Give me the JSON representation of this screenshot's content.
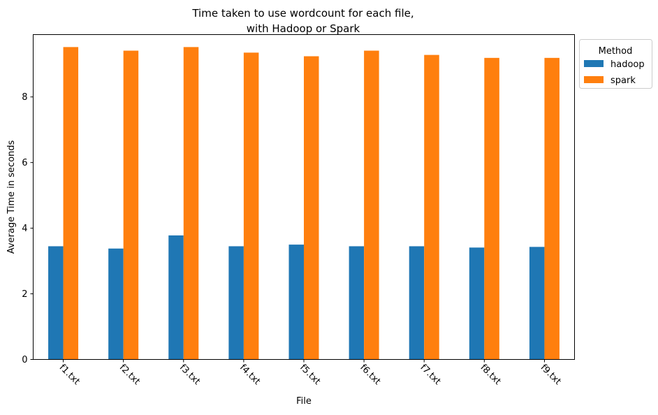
{
  "chart_data": {
    "type": "bar",
    "title_lines": [
      "Time taken to use wordcount for each file,",
      "with Hadoop or Spark"
    ],
    "xlabel": "File",
    "ylabel": "Average Time in seconds",
    "categories": [
      "f1.txt",
      "f2.txt",
      "f3.txt",
      "f4.txt",
      "f5.txt",
      "f6.txt",
      "f7.txt",
      "f8.txt",
      "f9.txt"
    ],
    "series": [
      {
        "name": "hadoop",
        "color": "#1f77b4",
        "values": [
          3.45,
          3.38,
          3.78,
          3.45,
          3.5,
          3.45,
          3.45,
          3.41,
          3.43
        ]
      },
      {
        "name": "spark",
        "color": "#ff7f0e",
        "values": [
          9.52,
          9.41,
          9.52,
          9.35,
          9.24,
          9.41,
          9.28,
          9.19,
          9.19
        ]
      }
    ],
    "ylim": [
      0,
      9.9
    ],
    "yticks": [
      0,
      2,
      4,
      6,
      8
    ],
    "grid": false,
    "legend": {
      "title": "Method",
      "placement": "outside-top-right"
    }
  }
}
